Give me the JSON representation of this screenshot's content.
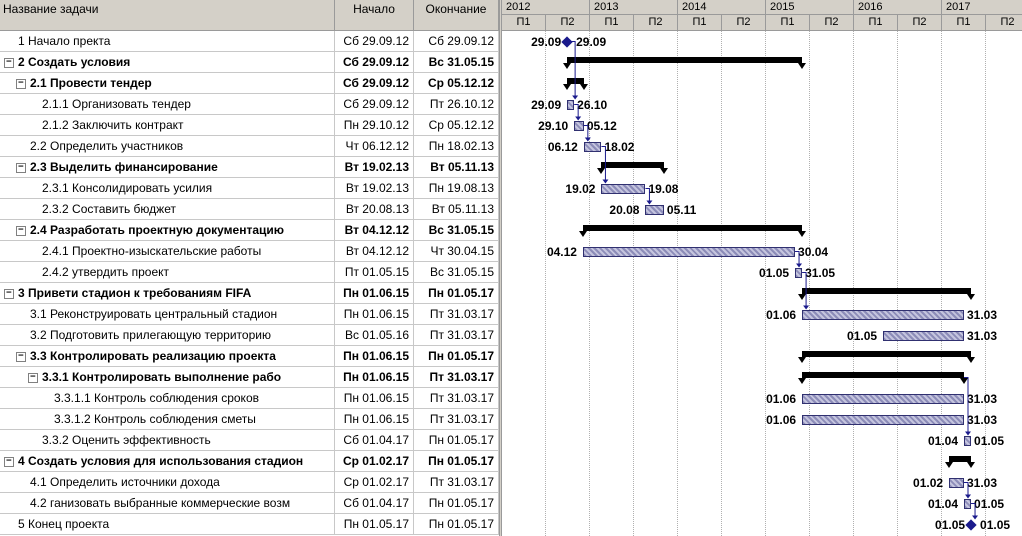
{
  "columns": {
    "name": "Название задачи",
    "start": "Начало",
    "end": "Окончание"
  },
  "timeline": {
    "years": [
      "2012",
      "2013",
      "2014",
      "2015",
      "2016",
      "2017"
    ],
    "halves": [
      "П1",
      "П2",
      "П1",
      "П2",
      "П1",
      "П2",
      "П1",
      "П2",
      "П1",
      "П2",
      "П1",
      "П2"
    ]
  },
  "tasks": [
    {
      "name": "1 Начало пректа",
      "start": "Сб 29.09.12",
      "end": "Сб 29.09.12",
      "level": 0,
      "summary": false,
      "toggle": "",
      "kind": "milestone",
      "s": 2012.74,
      "e": 2012.74,
      "ls": "29.09",
      "le": "29.09"
    },
    {
      "name": "2 Создать условия",
      "start": "Сб 29.09.12",
      "end": "Вс 31.05.15",
      "level": 0,
      "summary": true,
      "toggle": "−",
      "kind": "summary",
      "s": 2012.74,
      "e": 2015.41,
      "ls": "",
      "le": ""
    },
    {
      "name": "2.1 Провести тендер",
      "start": "Сб 29.09.12",
      "end": "Ср 05.12.12",
      "level": 1,
      "summary": true,
      "toggle": "−",
      "kind": "summary",
      "s": 2012.74,
      "e": 2012.93,
      "ls": "",
      "le": ""
    },
    {
      "name": "2.1.1 Организовать тендер",
      "start": "Сб 29.09.12",
      "end": "Пт 26.10.12",
      "level": 2,
      "summary": false,
      "toggle": "",
      "kind": "bar",
      "s": 2012.74,
      "e": 2012.82,
      "ls": "29.09",
      "le": "26.10"
    },
    {
      "name": "2.1.2 Заключить контракт",
      "start": "Пн 29.10.12",
      "end": "Ср 05.12.12",
      "level": 2,
      "summary": false,
      "toggle": "",
      "kind": "bar",
      "s": 2012.82,
      "e": 2012.93,
      "ls": "29.10",
      "le": "05.12"
    },
    {
      "name": "2.2 Определить участников",
      "start": "Чт 06.12.12",
      "end": "Пн 18.02.13",
      "level": 1,
      "summary": false,
      "toggle": "",
      "kind": "bar",
      "s": 2012.93,
      "e": 2013.13,
      "ls": "06.12",
      "le": "18.02"
    },
    {
      "name": "2.3 Выделить финансирование",
      "start": "Вт 19.02.13",
      "end": "Вт 05.11.13",
      "level": 1,
      "summary": true,
      "toggle": "−",
      "kind": "summary",
      "s": 2013.13,
      "e": 2013.84,
      "ls": "",
      "le": ""
    },
    {
      "name": "2.3.1 Консолидировать усилия",
      "start": "Вт 19.02.13",
      "end": "Пн 19.08.13",
      "level": 2,
      "summary": false,
      "toggle": "",
      "kind": "bar",
      "s": 2013.13,
      "e": 2013.63,
      "ls": "19.02",
      "le": "19.08"
    },
    {
      "name": "2.3.2 Составить бюджет",
      "start": "Вт 20.08.13",
      "end": "Вт 05.11.13",
      "level": 2,
      "summary": false,
      "toggle": "",
      "kind": "bar",
      "s": 2013.63,
      "e": 2013.84,
      "ls": "20.08",
      "le": "05.11"
    },
    {
      "name": "2.4 Разработать проектную документацию",
      "start": "Вт 04.12.12",
      "end": "Вс 31.05.15",
      "level": 1,
      "summary": true,
      "toggle": "−",
      "kind": "summary",
      "s": 2012.92,
      "e": 2015.41,
      "ls": "",
      "le": ""
    },
    {
      "name": "2.4.1 Проектно-изыскательские работы",
      "start": "Вт 04.12.12",
      "end": "Чт 30.04.15",
      "level": 2,
      "summary": false,
      "toggle": "",
      "kind": "bar",
      "s": 2012.92,
      "e": 2015.33,
      "ls": "04.12",
      "le": "30.04"
    },
    {
      "name": "2.4.2 утвердить проект",
      "start": "Пт 01.05.15",
      "end": "Вс 31.05.15",
      "level": 2,
      "summary": false,
      "toggle": "",
      "kind": "bar",
      "s": 2015.33,
      "e": 2015.41,
      "ls": "01.05",
      "le": "31.05"
    },
    {
      "name": "3 Привети стадион к требованиям FIFA",
      "start": "Пн 01.06.15",
      "end": "Пн 01.05.17",
      "level": 0,
      "summary": true,
      "toggle": "−",
      "kind": "summary",
      "s": 2015.41,
      "e": 2017.33,
      "ls": "",
      "le": ""
    },
    {
      "name": "3.1 Реконструировать центральный стадион",
      "start": "Пн 01.06.15",
      "end": "Пт 31.03.17",
      "level": 1,
      "summary": false,
      "toggle": "",
      "kind": "bar",
      "s": 2015.41,
      "e": 2017.25,
      "ls": "01.06",
      "le": "31.03"
    },
    {
      "name": "3.2 Подготовить прилегающую территорию",
      "start": "Вс 01.05.16",
      "end": "Пт 31.03.17",
      "level": 1,
      "summary": false,
      "toggle": "",
      "kind": "bar",
      "s": 2016.33,
      "e": 2017.25,
      "ls": "01.05",
      "le": "31.03"
    },
    {
      "name": "3.3 Контролировать реализацию проекта",
      "start": "Пн 01.06.15",
      "end": "Пн 01.05.17",
      "level": 1,
      "summary": true,
      "toggle": "−",
      "kind": "summary",
      "s": 2015.41,
      "e": 2017.33,
      "ls": "",
      "le": ""
    },
    {
      "name": "3.3.1 Контролировать выполнение рабо",
      "start": "Пн 01.06.15",
      "end": "Пт 31.03.17",
      "level": 2,
      "summary": true,
      "toggle": "−",
      "kind": "summary",
      "s": 2015.41,
      "e": 2017.25,
      "ls": "",
      "le": ""
    },
    {
      "name": "3.3.1.1 Контроль соблюдения сроков",
      "start": "Пн 01.06.15",
      "end": "Пт 31.03.17",
      "level": 3,
      "summary": false,
      "toggle": "",
      "kind": "bar",
      "s": 2015.41,
      "e": 2017.25,
      "ls": "01.06",
      "le": "31.03"
    },
    {
      "name": "3.3.1.2 Контроль соблюдения сметы",
      "start": "Пн 01.06.15",
      "end": "Пт 31.03.17",
      "level": 3,
      "summary": false,
      "toggle": "",
      "kind": "bar",
      "s": 2015.41,
      "e": 2017.25,
      "ls": "01.06",
      "le": "31.03"
    },
    {
      "name": "3.3.2 Оценить эффективность",
      "start": "Сб 01.04.17",
      "end": "Пн 01.05.17",
      "level": 2,
      "summary": false,
      "toggle": "",
      "kind": "bar",
      "s": 2017.25,
      "e": 2017.33,
      "ls": "01.04",
      "le": "01.05"
    },
    {
      "name": "4 Создать условия для использования стадион",
      "start": "Ср 01.02.17",
      "end": "Пн 01.05.17",
      "level": 0,
      "summary": true,
      "toggle": "−",
      "kind": "summary",
      "s": 2017.08,
      "e": 2017.33,
      "ls": "",
      "le": ""
    },
    {
      "name": "4.1 Определить источники дохода",
      "start": "Ср 01.02.17",
      "end": "Пт 31.03.17",
      "level": 1,
      "summary": false,
      "toggle": "",
      "kind": "bar",
      "s": 2017.08,
      "e": 2017.25,
      "ls": "01.02",
      "le": "31.03"
    },
    {
      "name": "4.2 ганизовать выбранные коммерческие возм",
      "start": "Сб 01.04.17",
      "end": "Пн 01.05.17",
      "level": 1,
      "summary": false,
      "toggle": "",
      "kind": "bar",
      "s": 2017.25,
      "e": 2017.33,
      "ls": "01.04",
      "le": "01.05"
    },
    {
      "name": "5 Конец проекта",
      "start": "Пн 01.05.17",
      "end": "Пн 01.05.17",
      "level": 0,
      "summary": false,
      "toggle": "",
      "kind": "milestone",
      "s": 2017.33,
      "e": 2017.33,
      "ls": "01.05",
      "le": "01.05"
    }
  ],
  "links": [
    [
      0,
      3
    ],
    [
      3,
      4
    ],
    [
      4,
      5
    ],
    [
      5,
      7
    ],
    [
      7,
      8
    ],
    [
      10,
      11
    ],
    [
      11,
      13
    ],
    [
      16,
      19
    ],
    [
      21,
      22
    ],
    [
      22,
      23
    ]
  ],
  "colors": {
    "bar_border": "#303070",
    "milestone": "#1a1a8c",
    "summary": "#000000",
    "header_bg": "#d4d0c8"
  }
}
